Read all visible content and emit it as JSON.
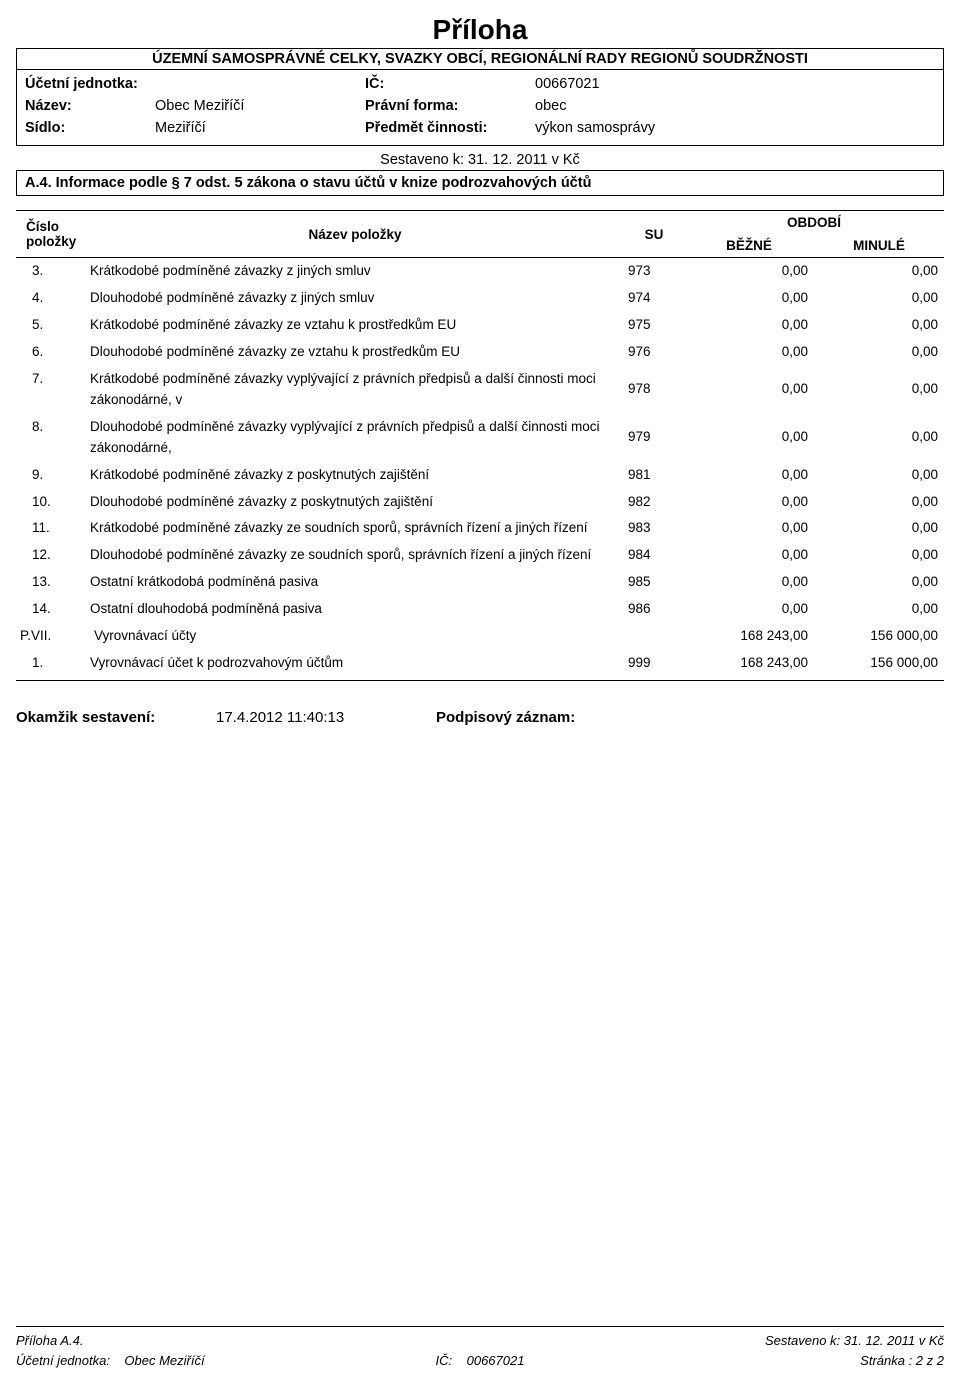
{
  "doc_title": "Příloha",
  "subtitle": "ÚZEMNÍ SAMOSPRÁVNÉ CELKY, SVAZKY OBCÍ, REGIONÁLNÍ RADY REGIONŮ SOUDRŽNOSTI",
  "info": {
    "ucetni_jednotka_label": "Účetní jednotka:",
    "nazev_label": "Název:",
    "nazev_value": "Obec Meziříčí",
    "sidlo_label": "Sídlo:",
    "sidlo_value": "Meziříčí",
    "ic_label": "IČ:",
    "ic_value": "00667021",
    "pravni_forma_label": "Právní forma:",
    "pravni_forma_value": "obec",
    "predmet_label": "Předmět činnosti:",
    "predmet_value": "výkon samosprávy"
  },
  "sestaveno_line": "Sestaveno k: 31. 12. 2011 v Kč",
  "section_title": "A.4. Informace podle § 7 odst. 5 zákona o stavu účtů v knize podrozvahových účtů",
  "table": {
    "headers": {
      "cislo": "Číslo položky",
      "nazev": "Název položky",
      "su": "SU",
      "obdobi": "OBDOBÍ",
      "bezne": "BĚŽNÉ",
      "minule": "MINULÉ"
    },
    "rows": [
      {
        "num": "3.",
        "name": "Krátkodobé podmíněné závazky z jiných smluv",
        "su": "973",
        "b": "0,00",
        "m": "0,00"
      },
      {
        "num": "4.",
        "name": "Dlouhodobé podmíněné závazky z jiných smluv",
        "su": "974",
        "b": "0,00",
        "m": "0,00"
      },
      {
        "num": "5.",
        "name": "Krátkodobé podmíněné závazky ze vztahu k prostředkům EU",
        "su": "975",
        "b": "0,00",
        "m": "0,00"
      },
      {
        "num": "6.",
        "name": "Dlouhodobé podmíněné závazky ze vztahu k prostředkům EU",
        "su": "976",
        "b": "0,00",
        "m": "0,00"
      },
      {
        "num": "7.",
        "name": "Krátkodobé podmíněné závazky vyplývající z právních předpisů a další činnosti moci zákonodárné, v",
        "su": "978",
        "b": "0,00",
        "m": "0,00"
      },
      {
        "num": "8.",
        "name": "Dlouhodobé podmíněné závazky vyplývající z právních předpisů a další činnosti moci zákonodárné,",
        "su": "979",
        "b": "0,00",
        "m": "0,00"
      },
      {
        "num": "9.",
        "name": "Krátkodobé podmíněné závazky z poskytnutých zajištění",
        "su": "981",
        "b": "0,00",
        "m": "0,00"
      },
      {
        "num": "10.",
        "name": "Dlouhodobé podmíněné závazky z poskytnutých zajištění",
        "su": "982",
        "b": "0,00",
        "m": "0,00"
      },
      {
        "num": "11.",
        "name": "Krátkodobé podmíněné závazky ze soudních sporů, správních řízení a jiných řízení",
        "su": "983",
        "b": "0,00",
        "m": "0,00"
      },
      {
        "num": "12.",
        "name": "Dlouhodobé podmíněné závazky ze soudních sporů, správních řízení a jiných řízení",
        "su": "984",
        "b": "0,00",
        "m": "0,00"
      },
      {
        "num": "13.",
        "name": "Ostatní krátkodobá podmíněná pasiva",
        "su": "985",
        "b": "0,00",
        "m": "0,00"
      },
      {
        "num": "14.",
        "name": "Ostatní dlouhodobá podmíněná pasiva",
        "su": "986",
        "b": "0,00",
        "m": "0,00"
      }
    ],
    "group": {
      "num": "P.VII.",
      "name": "Vyrovnávací účty",
      "su": "",
      "b": "168 243,00",
      "m": "156 000,00"
    },
    "subrow": {
      "num": "1.",
      "name": "Vyrovnávací účet k podrozvahovým účtům",
      "su": "999",
      "b": "168 243,00",
      "m": "156 000,00"
    }
  },
  "signature": {
    "okamzik_label": "Okamžik sestavení:",
    "okamzik_value": "17.4.2012  11:40:13",
    "podpis_label": "Podpisový záznam:"
  },
  "footer": {
    "priloha": "Příloha  A.4.",
    "sestaveno": "Sestaveno k: 31. 12. 2011 v Kč",
    "uj_label": "Účetní jednotka:",
    "uj_value": "Obec Meziříčí",
    "ic_label": "IČ:",
    "ic_value": "00667021",
    "stranka": "Stránka :      2   z      2"
  }
}
